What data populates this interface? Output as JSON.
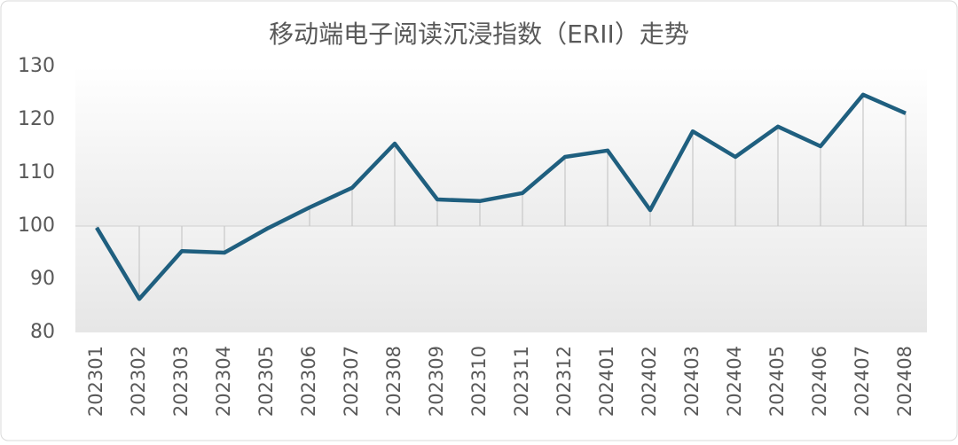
{
  "chart_data": {
    "type": "line",
    "title": "移动端电子阅读沉浸指数（ERII）走势",
    "categories": [
      "202301",
      "202302",
      "202303",
      "202304",
      "202305",
      "202306",
      "202307",
      "202308",
      "202309",
      "202310",
      "202311",
      "202312",
      "202401",
      "202402",
      "202403",
      "202404",
      "202405",
      "202406",
      "202407",
      "202408"
    ],
    "series": [
      {
        "name": "ERII",
        "color": "#1f5f7f",
        "values": [
          99.7,
          86.3,
          95.3,
          95.0,
          99.5,
          103.5,
          107.2,
          115.5,
          105.0,
          104.7,
          106.2,
          113.0,
          114.2,
          103.0,
          117.8,
          113.0,
          118.7,
          115.0,
          124.7,
          121.2
        ]
      }
    ],
    "ylim": [
      80,
      130
    ],
    "yticks": [
      80,
      90,
      100,
      110,
      120,
      130
    ],
    "drop_lines_to": 100
  }
}
